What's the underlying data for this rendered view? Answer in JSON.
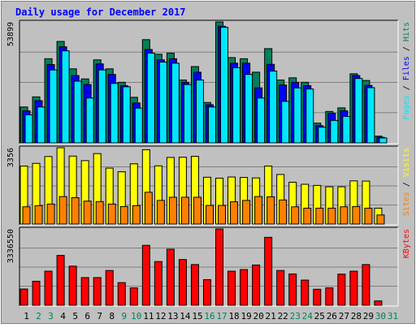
{
  "chart_data": {
    "type": "bar",
    "title": "Daily usage for December 2017",
    "categories": [
      "1",
      "2",
      "3",
      "4",
      "5",
      "6",
      "7",
      "8",
      "9",
      "10",
      "11",
      "12",
      "13",
      "14",
      "15",
      "16",
      "17",
      "18",
      "19",
      "20",
      "21",
      "22",
      "23",
      "24",
      "25",
      "26",
      "27",
      "28",
      "29",
      "30",
      "31"
    ],
    "weekend_days": [
      "2",
      "3",
      "9",
      "10",
      "16",
      "17",
      "23",
      "24",
      "30",
      "31"
    ],
    "panels": [
      {
        "name": "top",
        "ymax_label": "53899",
        "ymax": 53899,
        "side_label": [
          "Pages",
          "Files",
          "Hits"
        ],
        "side_label_separator": " / ",
        "series": [
          {
            "name": "Hits",
            "color": "#00805a",
            "values": [
              16000,
              20500,
              37500,
              45200,
              33000,
              28500,
              37000,
              33000,
              27000,
              20300,
              46000,
              39500,
              40000,
              28000,
              34000,
              18000,
              53899,
              38000,
              37500,
              31500,
              42000,
              28000,
              29000,
              27000,
              8800,
              14000,
              15600,
              30800,
              27800,
              3000,
              0
            ]
          },
          {
            "name": "Files",
            "color": "#0000ff",
            "values": [
              14300,
              18800,
              34900,
              42800,
              30000,
              26000,
              35200,
              30500,
              25500,
              17800,
              41600,
              37000,
              37500,
              27000,
              31500,
              17000,
              52000,
              35500,
              35500,
              24500,
              35000,
              25800,
              27000,
              25500,
              7700,
              13200,
              14300,
              30000,
              25600,
              2500,
              0
            ]
          },
          {
            "name": "Pages",
            "color": "#00e6ff",
            "values": [
              12500,
              16000,
              32500,
              41000,
              27500,
              20000,
              32500,
              26500,
              25000,
              15500,
              40000,
              36000,
              35500,
              26000,
              28000,
              16000,
              51500,
              33500,
              30500,
              20000,
              32000,
              18500,
              24500,
              24000,
              7000,
              10000,
              11800,
              28700,
              24600,
              2200,
              0
            ]
          }
        ]
      },
      {
        "name": "middle",
        "ymax_label": "3356",
        "ymax": 3356,
        "side_label": [
          "Sites",
          "Visits"
        ],
        "side_label_separator": " / ",
        "series": [
          {
            "name": "Visits",
            "color": "#ffff00",
            "values": [
              2550,
              2670,
              2970,
              3356,
              2990,
              2790,
              3100,
              2460,
              2300,
              2650,
              3270,
              2560,
              2930,
              2940,
              2980,
              2060,
              2020,
              2070,
              2050,
              2030,
              2550,
              2180,
              1840,
              1750,
              1700,
              1640,
              1640,
              1900,
              1890,
              700,
              0
            ]
          },
          {
            "name": "Sites",
            "color": "#ff8000",
            "values": [
              760,
              810,
              880,
              1210,
              1160,
              1010,
              990,
              880,
              770,
              810,
              1400,
              1040,
              1180,
              1180,
              1180,
              820,
              820,
              980,
              1040,
              1210,
              1200,
              1060,
              760,
              700,
              700,
              700,
              760,
              770,
              700,
              400,
              0
            ]
          }
        ]
      },
      {
        "name": "bottom",
        "ymax_label": "3336550",
        "ymax": 3336550,
        "side_label": [
          "KBytes"
        ],
        "side_label_separator": "",
        "series": [
          {
            "name": "KBytes",
            "color": "#ff0000",
            "values": [
              710000,
              1050000,
              1490000,
              2180000,
              1710000,
              1210000,
              1210000,
              1520000,
              990000,
              760000,
              2620000,
              1910000,
              2450000,
              2000000,
              1780000,
              1120000,
              3336550,
              1490000,
              1560000,
              1760000,
              2970000,
              1520000,
              1370000,
              1100000,
              700000,
              760000,
              1360000,
              1490000,
              1780000,
              190000,
              0
            ]
          }
        ]
      }
    ]
  }
}
